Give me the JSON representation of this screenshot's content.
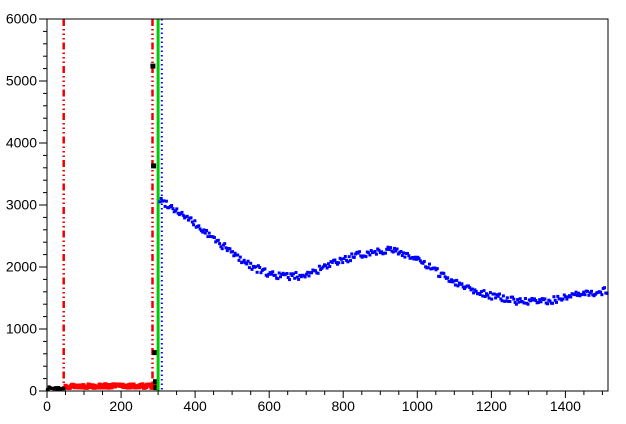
{
  "canvas": {
    "background": "#ffffff",
    "frame_color": "#000000",
    "tick_color": "#000000",
    "label_color": "#000000"
  },
  "chart_data": {
    "type": "scatter",
    "title": "",
    "xlabel": "",
    "ylabel": "",
    "xlim": [
      0,
      1515
    ],
    "ylim": [
      0,
      6000
    ],
    "grid": false,
    "legend": "none",
    "x_major_step": 200,
    "x_minor_step": 50,
    "x_tick_labels": [
      "0",
      "200",
      "400",
      "600",
      "800",
      "1000",
      "1200",
      "1400"
    ],
    "y_major_step": 1000,
    "y_minor_step": 200,
    "y_tick_labels": [
      "0",
      "1000",
      "2000",
      "3000",
      "4000",
      "5000",
      "6000"
    ],
    "vlines": [
      {
        "name": "vline-red-dashdot-left",
        "x": 45,
        "color": "#ee0000",
        "style": "dash-dot-dot",
        "width": 2.5,
        "z": 1
      },
      {
        "name": "vline-red-dashdot-right",
        "x": 285,
        "color": "#ee0000",
        "style": "dash-dot-dot",
        "width": 2.5,
        "z": 1
      },
      {
        "name": "vline-green-solid",
        "x": 300,
        "color": "#00cc00",
        "style": "solid",
        "width": 3,
        "z": 4
      },
      {
        "name": "vline-blue-dotted",
        "x": 310,
        "color": "#0000ff",
        "style": "dotted",
        "width": 2,
        "z": 5
      }
    ],
    "series": [
      {
        "name": "series-red-baseline",
        "color": "#ff0000",
        "marker": "square",
        "marker_px": 4,
        "seed": 13,
        "z": 2,
        "band": {
          "x_start": 50,
          "x_end": 296,
          "step": 2,
          "y_base": 80,
          "y_jitter": 30
        }
      },
      {
        "name": "series-black-baseline",
        "color": "#000000",
        "marker": "square",
        "marker_px": 3,
        "seed": 7,
        "z": 2,
        "band": {
          "x_start": 1,
          "x_end": 48,
          "step": 2.5,
          "y_base": 45,
          "y_jitter": 22
        }
      },
      {
        "name": "series-black-outliers",
        "color": "#000000",
        "marker": "square",
        "marker_px": 5,
        "seed": 3,
        "z": 3,
        "points": [
          [
            286,
            5240
          ],
          [
            288,
            3630
          ],
          [
            291,
            620
          ],
          [
            293,
            150
          ],
          [
            294,
            55
          ]
        ]
      },
      {
        "name": "series-blue-signal",
        "color": "#0000ff",
        "marker": "square",
        "marker_px": 3,
        "seed": 99,
        "z": 6,
        "curve": {
          "x_start": 305,
          "x_end": 1513,
          "step": 3.5,
          "y_jitter": 58,
          "anchors": [
            [
              305,
              3080
            ],
            [
              330,
              3000
            ],
            [
              360,
              2870
            ],
            [
              400,
              2690
            ],
            [
              440,
              2500
            ],
            [
              480,
              2320
            ],
            [
              520,
              2140
            ],
            [
              560,
              1990
            ],
            [
              600,
              1890
            ],
            [
              640,
              1848
            ],
            [
              680,
              1855
            ],
            [
              720,
              1915
            ],
            [
              760,
              2020
            ],
            [
              800,
              2115
            ],
            [
              840,
              2185
            ],
            [
              880,
              2245
            ],
            [
              920,
              2280
            ],
            [
              960,
              2230
            ],
            [
              1000,
              2115
            ],
            [
              1040,
              1965
            ],
            [
              1080,
              1830
            ],
            [
              1120,
              1710
            ],
            [
              1160,
              1615
            ],
            [
              1200,
              1540
            ],
            [
              1240,
              1480
            ],
            [
              1280,
              1447
            ],
            [
              1320,
              1437
            ],
            [
              1360,
              1460
            ],
            [
              1400,
              1505
            ],
            [
              1440,
              1550
            ],
            [
              1480,
              1590
            ],
            [
              1513,
              1620
            ]
          ]
        }
      }
    ]
  }
}
